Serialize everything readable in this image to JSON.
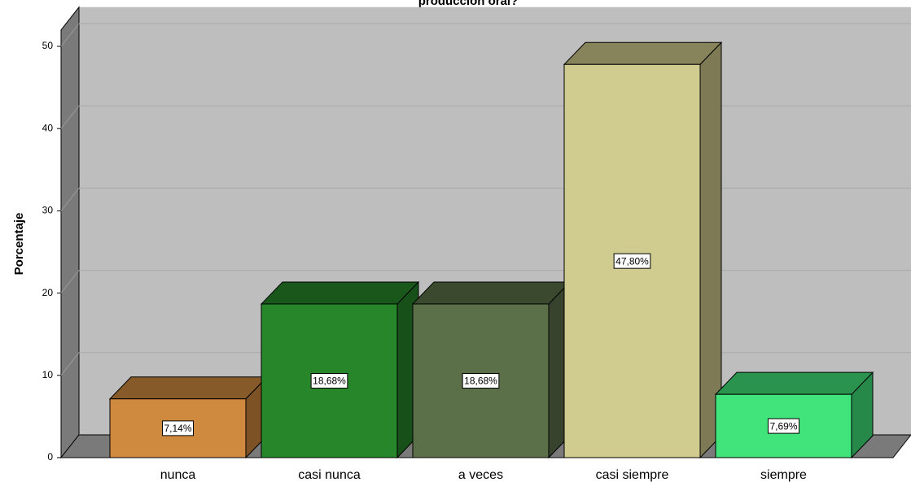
{
  "chart_data": {
    "type": "bar3d",
    "title": "producción oral?",
    "y_label": "Porcentaje",
    "categories": [
      "nunca",
      "casi nunca",
      "a veces",
      "casi siempre",
      "siempre"
    ],
    "values": [
      7.14,
      18.68,
      18.68,
      47.8,
      7.69
    ],
    "value_labels": [
      "7,14%",
      "18,68%",
      "18,68%",
      "47,80%",
      "7,69%"
    ],
    "colors": [
      "#d08a40",
      "#28862a",
      "#5b7049",
      "#d0cb8e",
      "#40e47a"
    ],
    "ylim": [
      0,
      52
    ],
    "yticks": [
      0,
      10,
      20,
      30,
      40,
      50
    ],
    "grid": true
  }
}
